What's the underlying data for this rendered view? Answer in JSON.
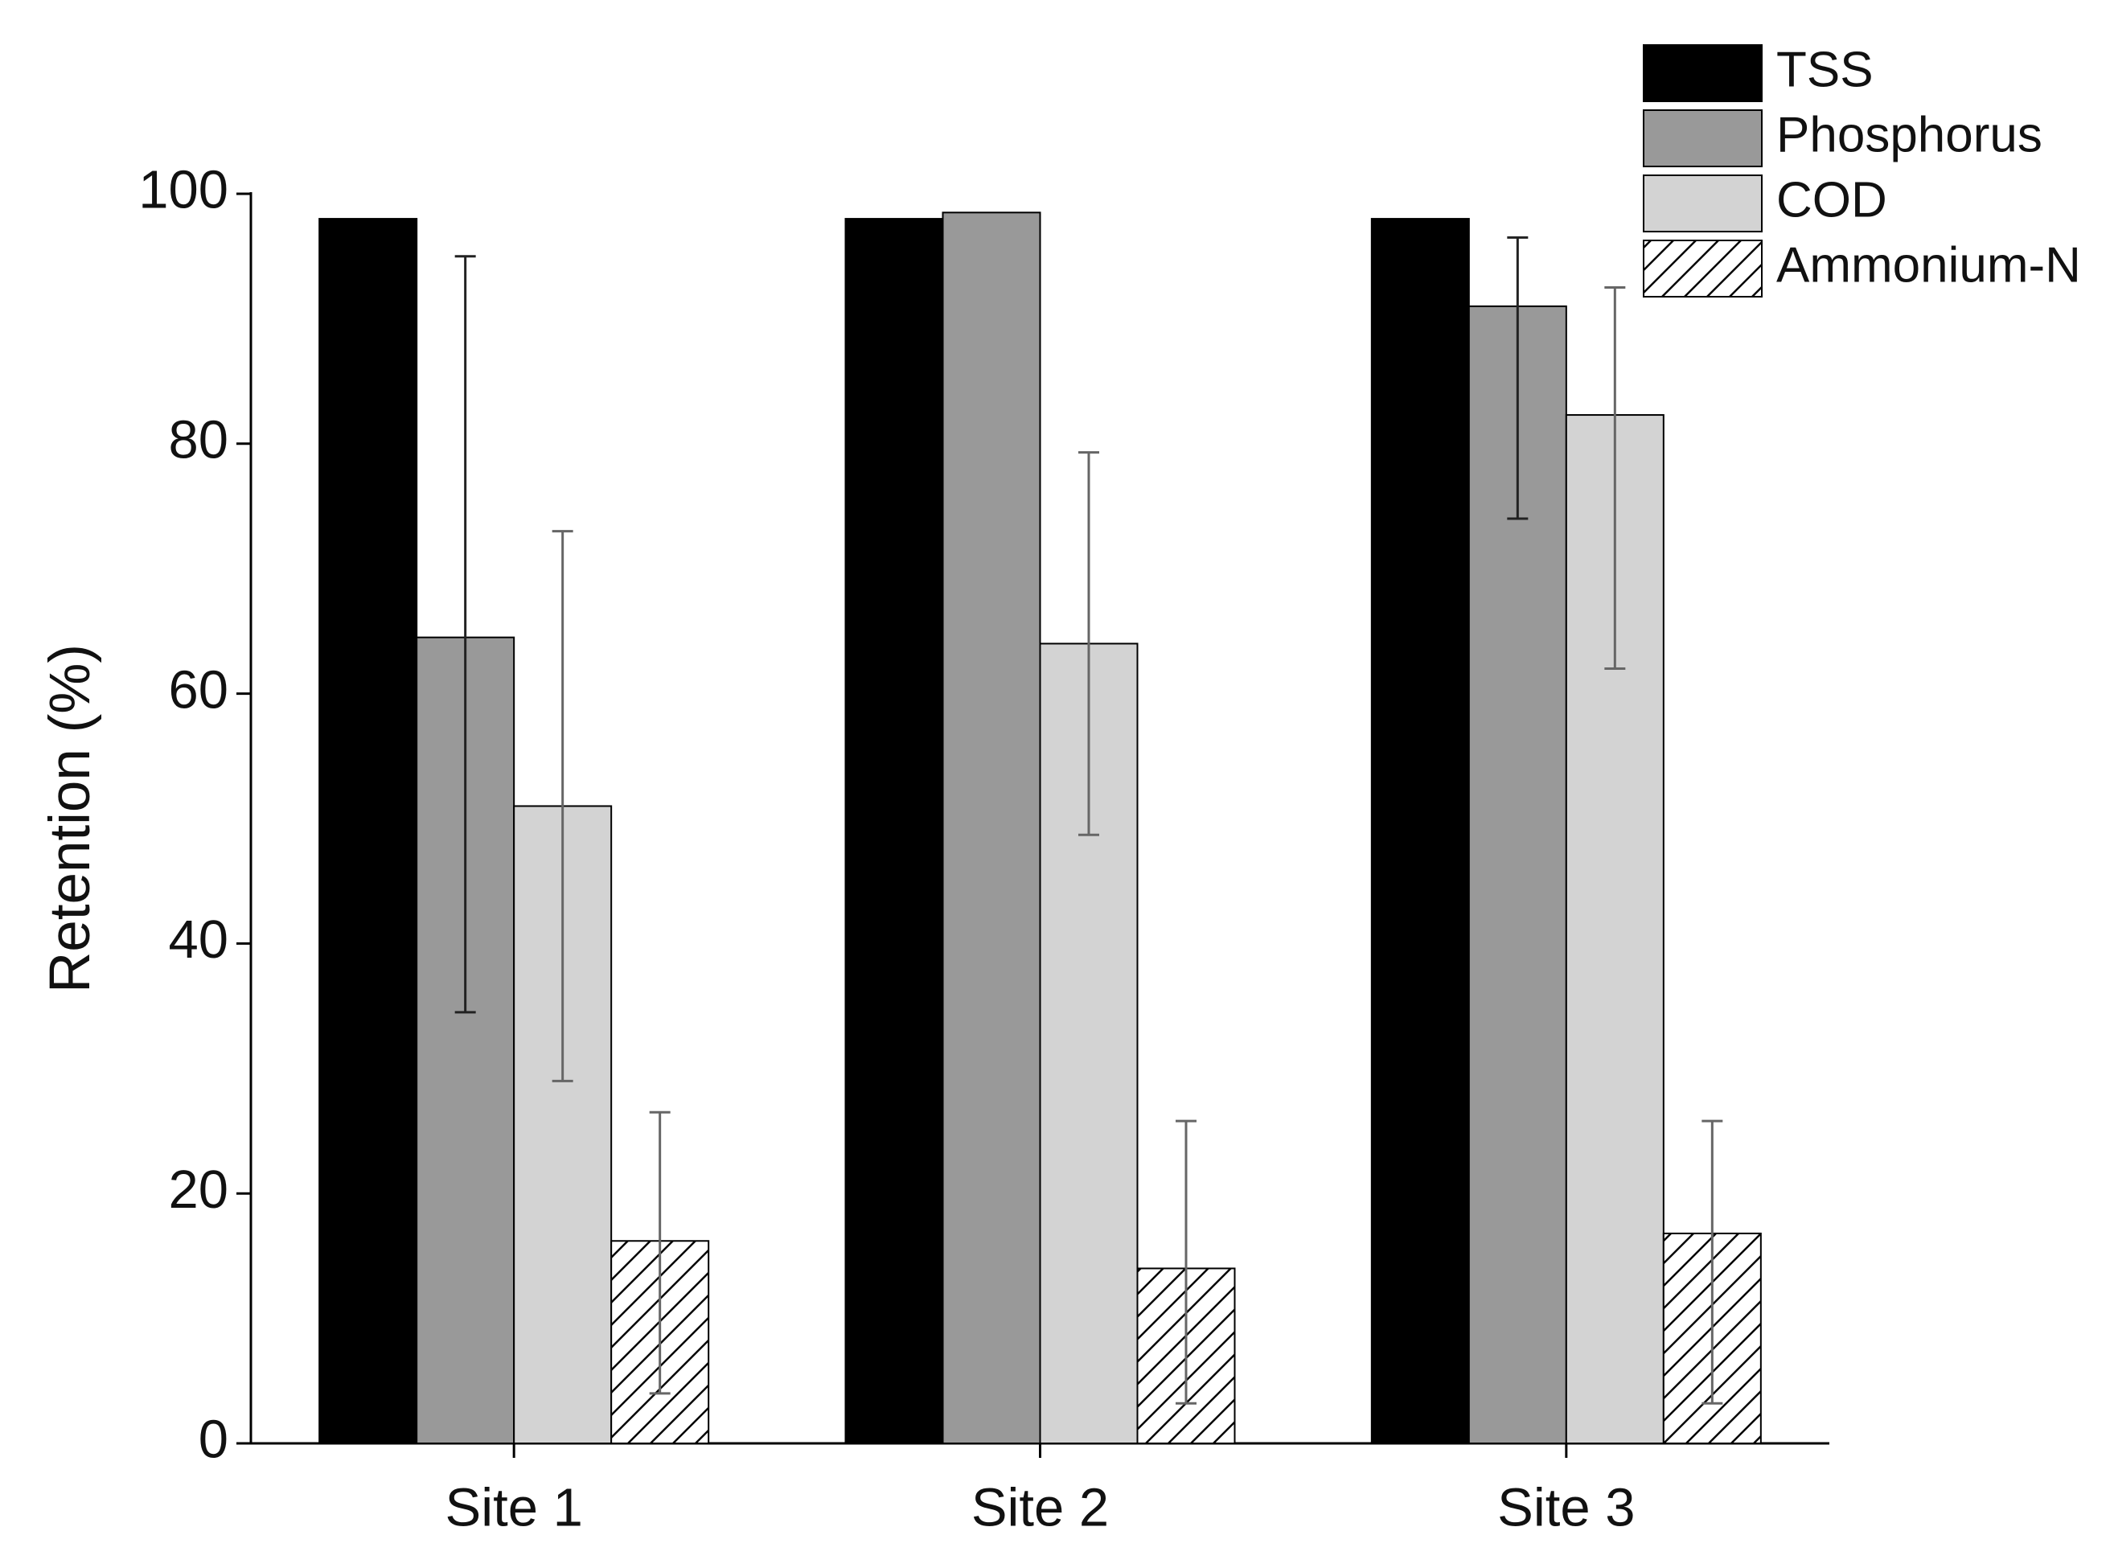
{
  "chart_data": {
    "type": "bar",
    "y_label": "Retention (%)",
    "categories": [
      "Site 1",
      "Site 2",
      "Site 3"
    ],
    "series": [
      {
        "name": "TSS",
        "color": "#000000",
        "values": [
          98,
          98,
          98
        ],
        "error_minus": [
          null,
          null,
          null
        ],
        "error_plus": [
          null,
          null,
          null
        ]
      },
      {
        "name": "Phosphorus",
        "color": "#999999",
        "values": [
          64.5,
          98.5,
          91
        ],
        "error_minus": [
          30,
          null,
          17
        ],
        "error_plus": [
          30.5,
          null,
          5.5
        ]
      },
      {
        "name": "COD",
        "color": "#d3d3d3",
        "values": [
          51,
          64,
          82.3
        ],
        "error_minus": [
          22,
          15.3,
          20.3
        ],
        "error_plus": [
          22,
          15.3,
          10.2
        ]
      },
      {
        "name": "Ammonium-N",
        "color": "#ffffff",
        "hatch": true,
        "values": [
          16.2,
          14,
          16.8
        ],
        "error_minus": [
          12.2,
          10.8,
          13.6
        ],
        "error_plus": [
          10.3,
          11.8,
          9
        ]
      }
    ],
    "ylim": [
      0,
      100
    ],
    "yticks": [
      0,
      20,
      40,
      60,
      80,
      100
    ],
    "legend": "top-right"
  }
}
